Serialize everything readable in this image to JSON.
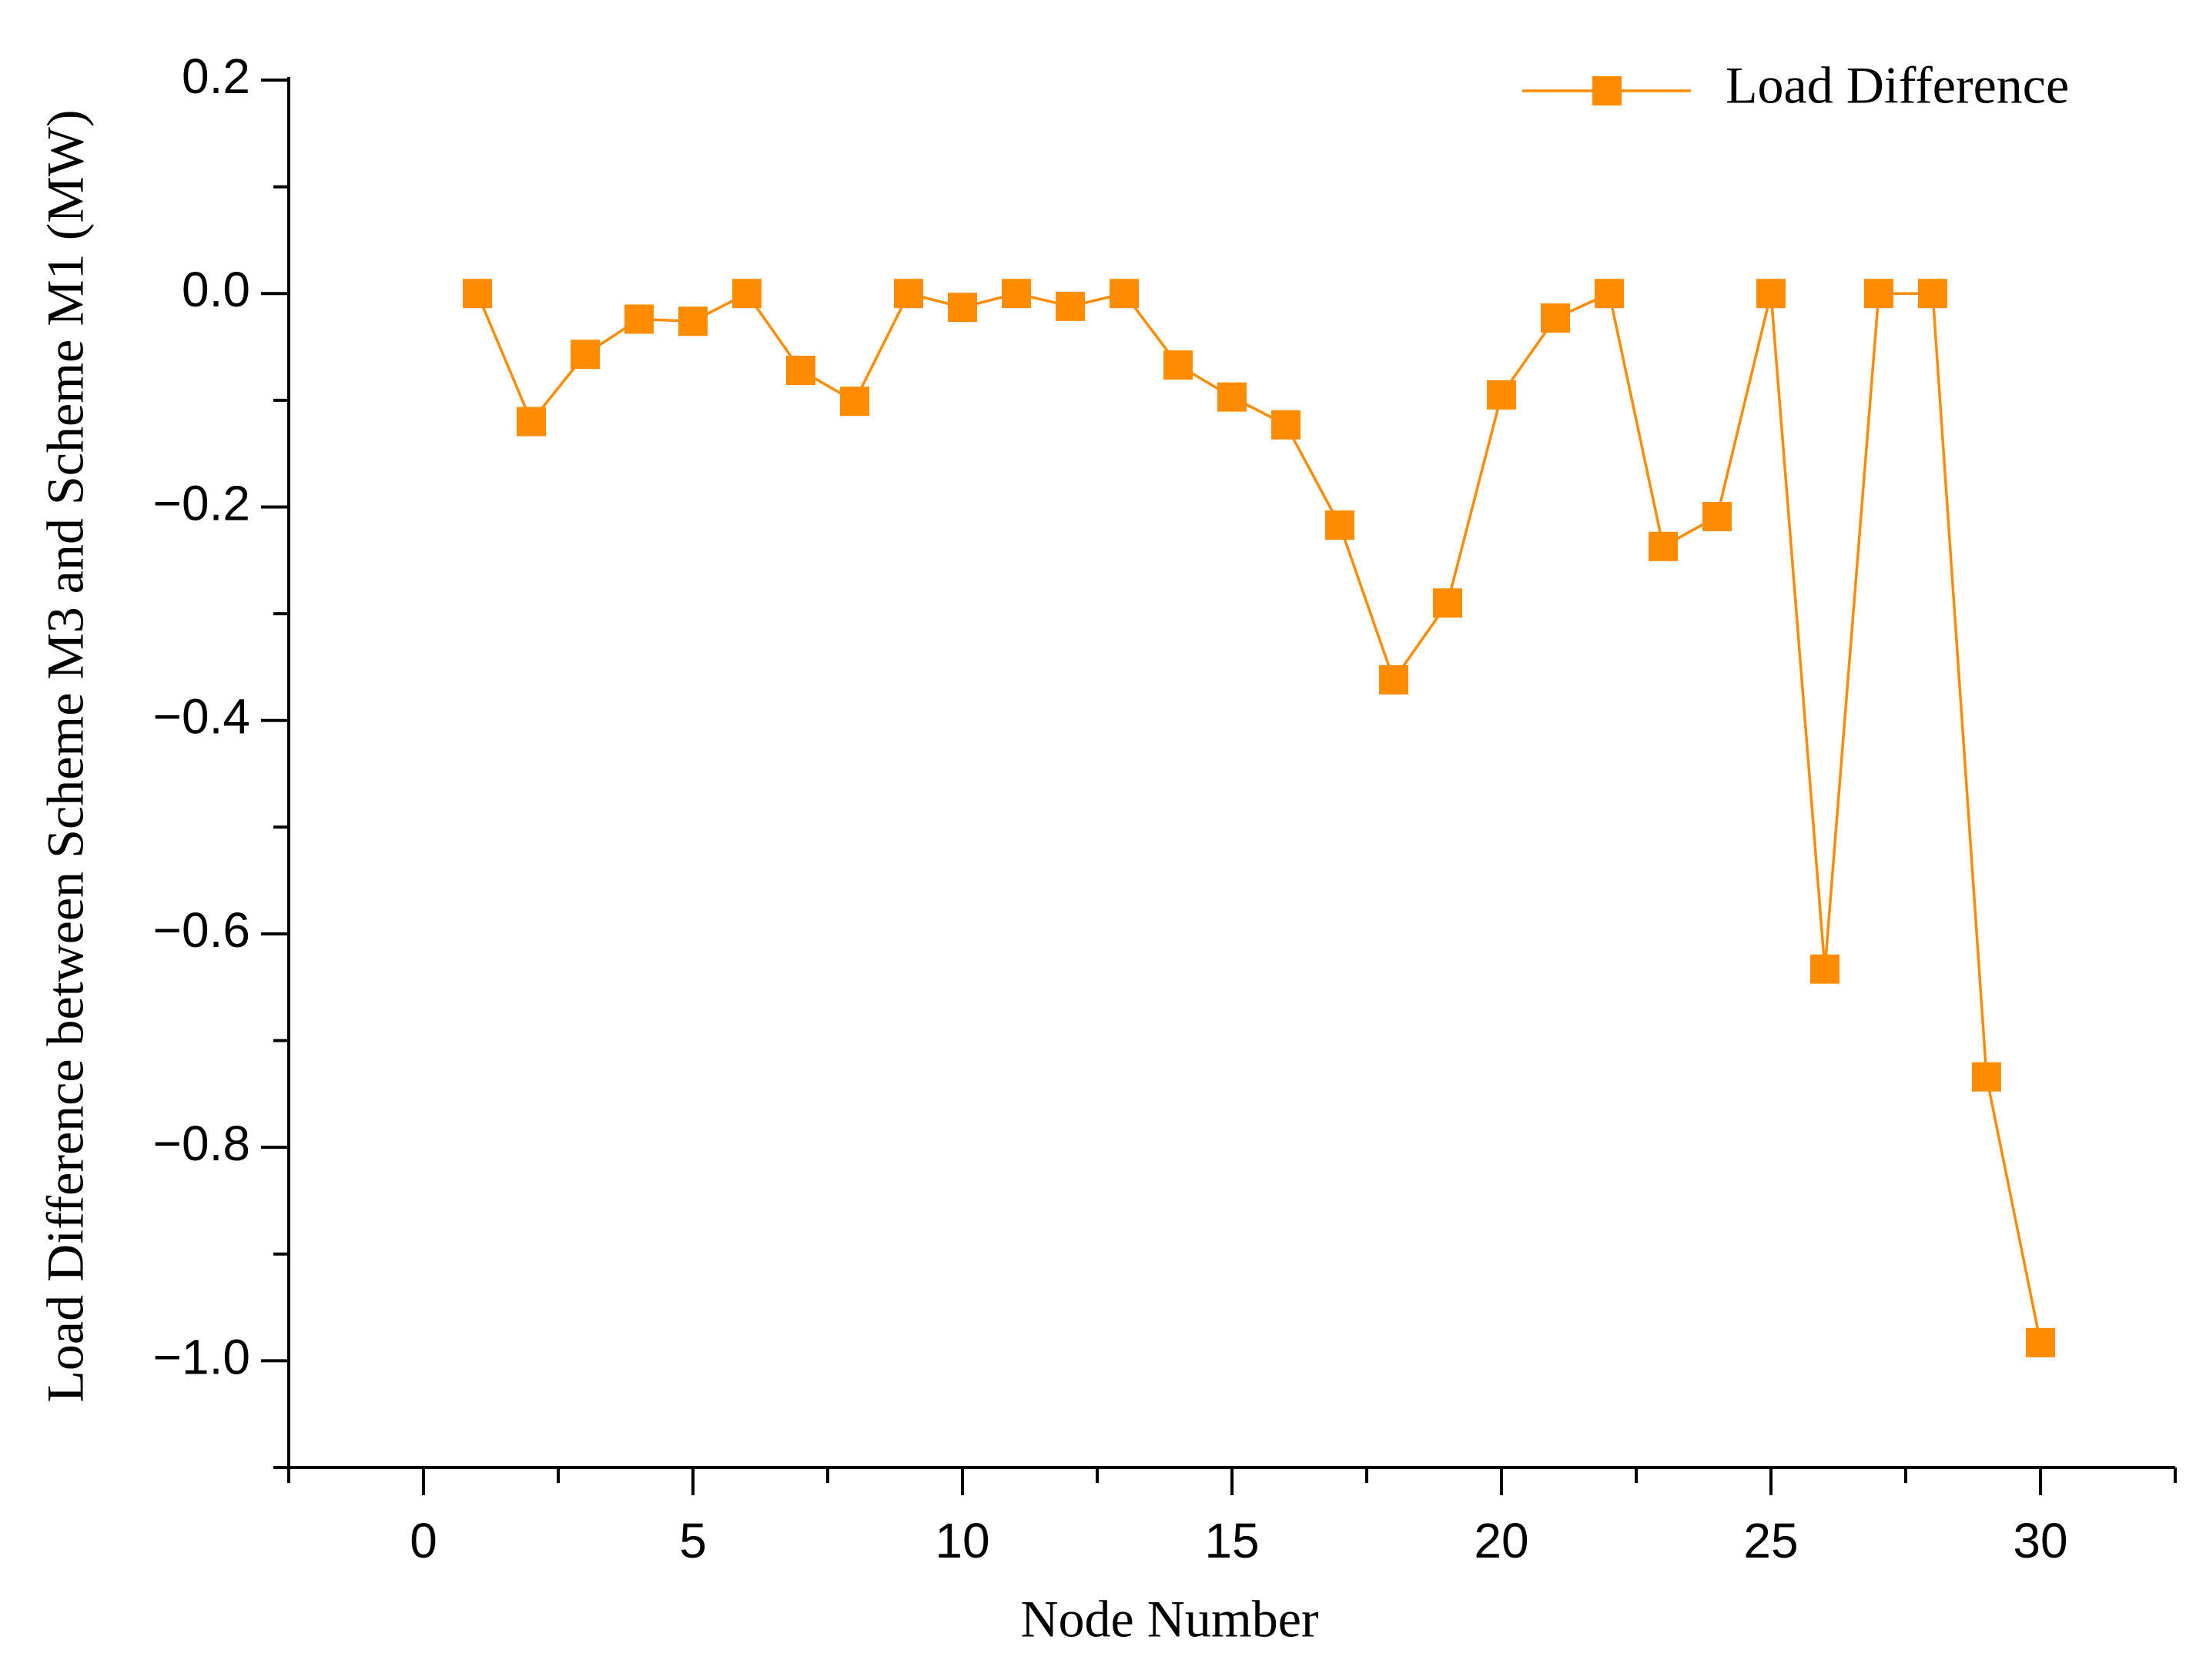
{
  "chart_data": {
    "type": "line",
    "x_label": "Node Number",
    "y_label": "Load Difference between Scheme  M3 and Scheme  M1 (MW)",
    "series": [
      {
        "name": "Load Difference",
        "color": "#ff8c00",
        "x": [
          1,
          2,
          3,
          4,
          5,
          6,
          7,
          8,
          9,
          10,
          11,
          12,
          13,
          14,
          15,
          16,
          17,
          18,
          19,
          20,
          21,
          22,
          23,
          24,
          25,
          26,
          27,
          28,
          29,
          30
        ],
        "values": [
          0,
          -0.12,
          -0.057,
          -0.024,
          -0.026,
          0,
          -0.072,
          -0.101,
          0,
          -0.013,
          0,
          -0.012,
          0,
          -0.067,
          -0.097,
          -0.123,
          -0.217,
          -0.362,
          -0.29,
          -0.095,
          -0.023,
          0,
          -0.237,
          -0.209,
          0,
          -0.633,
          0,
          0,
          -0.734,
          -0.983
        ]
      }
    ],
    "xlim": [
      -2.5,
      32.5
    ],
    "xticks": [
      0,
      5,
      10,
      15,
      20,
      25,
      30
    ],
    "x_minor_ticks": [
      -2.5,
      2.5,
      7.5,
      12.5,
      17.5,
      22.5,
      27.5,
      32.5
    ],
    "ylim": [
      -1.1,
      0.2
    ],
    "yticks": [
      {
        "value": -1.0,
        "label": "−1.0"
      },
      {
        "value": -0.8,
        "label": "−0.8"
      },
      {
        "value": -0.6,
        "label": "−0.6"
      },
      {
        "value": -0.4,
        "label": "−0.4"
      },
      {
        "value": -0.2,
        "label": "−0.2"
      },
      {
        "value": 0,
        "label": "0.0"
      },
      0.2
    ],
    "y_minor_ticks": [
      -1.1,
      -0.9,
      -0.7,
      -0.5,
      -0.3,
      -0.1,
      0.1
    ],
    "legend": "upper right",
    "grid": false
  }
}
